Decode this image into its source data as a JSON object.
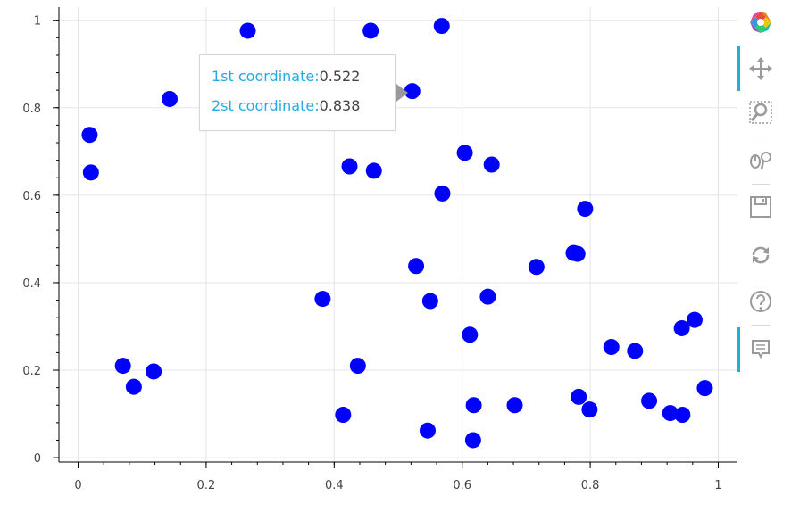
{
  "chart_data": {
    "type": "scatter",
    "title": "",
    "xlabel": "",
    "ylabel": "",
    "xlim": [
      -0.03,
      1.03
    ],
    "ylim": [
      -0.01,
      1.03
    ],
    "grid": true,
    "x_ticks": [
      "0",
      "0.2",
      "0.4",
      "0.6",
      "0.8",
      "1"
    ],
    "y_ticks": [
      "0",
      "0.2",
      "0.4",
      "0.6",
      "0.8",
      "1"
    ],
    "marker_color": "#0000ff",
    "points": [
      {
        "x": 0.018,
        "y": 0.738
      },
      {
        "x": 0.02,
        "y": 0.652
      },
      {
        "x": 0.07,
        "y": 0.21
      },
      {
        "x": 0.087,
        "y": 0.162
      },
      {
        "x": 0.118,
        "y": 0.197
      },
      {
        "x": 0.143,
        "y": 0.82
      },
      {
        "x": 0.265,
        "y": 0.976
      },
      {
        "x": 0.382,
        "y": 0.363
      },
      {
        "x": 0.414,
        "y": 0.098
      },
      {
        "x": 0.424,
        "y": 0.666
      },
      {
        "x": 0.437,
        "y": 0.21
      },
      {
        "x": 0.457,
        "y": 0.976
      },
      {
        "x": 0.462,
        "y": 0.656
      },
      {
        "x": 0.522,
        "y": 0.838
      },
      {
        "x": 0.528,
        "y": 0.438
      },
      {
        "x": 0.546,
        "y": 0.062
      },
      {
        "x": 0.55,
        "y": 0.358
      },
      {
        "x": 0.568,
        "y": 0.987
      },
      {
        "x": 0.569,
        "y": 0.604
      },
      {
        "x": 0.604,
        "y": 0.697
      },
      {
        "x": 0.612,
        "y": 0.281
      },
      {
        "x": 0.617,
        "y": 0.04
      },
      {
        "x": 0.618,
        "y": 0.12
      },
      {
        "x": 0.64,
        "y": 0.368
      },
      {
        "x": 0.646,
        "y": 0.67
      },
      {
        "x": 0.682,
        "y": 0.12
      },
      {
        "x": 0.716,
        "y": 0.436
      },
      {
        "x": 0.774,
        "y": 0.468
      },
      {
        "x": 0.78,
        "y": 0.466
      },
      {
        "x": 0.782,
        "y": 0.139
      },
      {
        "x": 0.792,
        "y": 0.569
      },
      {
        "x": 0.799,
        "y": 0.11
      },
      {
        "x": 0.833,
        "y": 0.253
      },
      {
        "x": 0.87,
        "y": 0.244
      },
      {
        "x": 0.892,
        "y": 0.13
      },
      {
        "x": 0.925,
        "y": 0.102
      },
      {
        "x": 0.943,
        "y": 0.296
      },
      {
        "x": 0.944,
        "y": 0.098
      },
      {
        "x": 0.963,
        "y": 0.315
      },
      {
        "x": 0.979,
        "y": 0.159
      }
    ]
  },
  "tooltip": {
    "row1_label": "1st coordinate:",
    "row1_value": "0.522",
    "row2_label": "2st coordinate:",
    "row2_value": "0.838"
  },
  "toolbar": {
    "tools": [
      "bokeh-logo-icon",
      "pan-icon",
      "box-zoom-icon",
      "wheel-zoom-icon",
      "save-icon",
      "reset-icon",
      "help-icon",
      "hover-icon"
    ],
    "accent_color": "#26aae1"
  }
}
